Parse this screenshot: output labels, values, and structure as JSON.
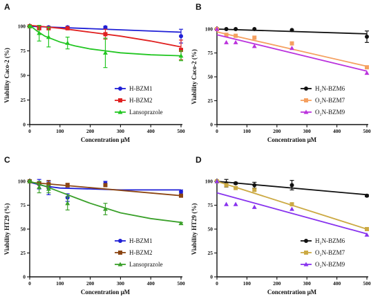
{
  "chart_data": [
    {
      "panel": "A",
      "type": "scatter",
      "xlabel": "Concentration μM",
      "ylabel": "Viability Caco-2 (%)",
      "xlim": [
        0,
        500
      ],
      "ylim": [
        0,
        100
      ],
      "xticks": [
        0,
        100,
        200,
        300,
        400,
        500
      ],
      "yticks": [
        0,
        25,
        50,
        75,
        100
      ],
      "legend_position": "bottom-right",
      "series": [
        {
          "name": "H-BZM1",
          "color": "#1f1fd6",
          "marker": "circle",
          "x": [
            0,
            31.25,
            62.5,
            125,
            250,
            500
          ],
          "y": [
            100,
            99,
            99,
            99,
            99,
            90
          ],
          "err": [
            1,
            1,
            1,
            1,
            1,
            7
          ],
          "fit": [
            [
              0,
              100
            ],
            [
              500,
              94
            ]
          ]
        },
        {
          "name": "H-BZM2",
          "color": "#e02020",
          "marker": "square",
          "x": [
            0,
            31.25,
            62.5,
            125,
            250,
            500
          ],
          "y": [
            100,
            98,
            98,
            98,
            92,
            76
          ],
          "err": [
            1,
            1,
            1,
            1,
            5,
            10
          ],
          "fit": [
            [
              0,
              101
            ],
            [
              100,
              98
            ],
            [
              200,
              94
            ],
            [
              300,
              90
            ],
            [
              400,
              85
            ],
            [
              500,
              79
            ]
          ]
        },
        {
          "name": "Lansoprazole",
          "color": "#22c622",
          "marker": "triangle",
          "x": [
            0,
            31.25,
            62.5,
            125,
            250,
            500
          ],
          "y": [
            100,
            93,
            89,
            83,
            73,
            70
          ],
          "err": [
            1,
            8,
            10,
            6,
            15,
            5
          ],
          "fit": [
            [
              0,
              101
            ],
            [
              25,
              95
            ],
            [
              50,
              90
            ],
            [
              100,
              84
            ],
            [
              150,
              80
            ],
            [
              200,
              77
            ],
            [
              250,
              75
            ],
            [
              300,
              73
            ],
            [
              400,
              71
            ],
            [
              500,
              70
            ]
          ]
        }
      ]
    },
    {
      "panel": "B",
      "type": "scatter",
      "xlabel": "Concentration μM",
      "ylabel": "Viability Caco-2 (%)",
      "xlim": [
        0,
        500
      ],
      "ylim": [
        0,
        100
      ],
      "xticks": [
        0,
        100,
        200,
        300,
        400,
        500
      ],
      "yticks": [
        0,
        25,
        50,
        75,
        100
      ],
      "legend_position": "bottom-right",
      "series": [
        {
          "name": "H₂N-BZM6",
          "color": "#111111",
          "marker": "circle",
          "x": [
            0,
            31.25,
            62.5,
            125,
            250,
            500
          ],
          "y": [
            100,
            100,
            100,
            100,
            99,
            92
          ],
          "err": [
            0,
            0,
            0,
            0,
            0,
            6
          ],
          "fit": [
            [
              0,
              100
            ],
            [
              500,
              95
            ]
          ]
        },
        {
          "name": "O₂N-BZM7",
          "color": "#f5a060",
          "marker": "square",
          "x": [
            0,
            31.25,
            62.5,
            125,
            250,
            500
          ],
          "y": [
            100,
            94,
            93,
            91,
            85,
            60
          ],
          "err": [
            0,
            0,
            0,
            0,
            0,
            0
          ],
          "fit": [
            [
              0,
              97
            ],
            [
              500,
              61
            ]
          ]
        },
        {
          "name": "O₂N-BZM9",
          "color": "#bb33dd",
          "marker": "triangle",
          "x": [
            0,
            31.25,
            62.5,
            125,
            250,
            500
          ],
          "y": [
            100,
            86,
            86,
            82,
            80,
            54
          ],
          "err": [
            0,
            0,
            0,
            0,
            0,
            0
          ],
          "fit": [
            [
              0,
              94
            ],
            [
              500,
              56
            ]
          ]
        }
      ]
    },
    {
      "panel": "C",
      "type": "scatter",
      "xlabel": "Concentration μM",
      "ylabel": "Viability HT29 (%)",
      "xlim": [
        0,
        500
      ],
      "ylim": [
        0,
        100
      ],
      "xticks": [
        0,
        100,
        200,
        300,
        400,
        500
      ],
      "yticks": [
        0,
        25,
        50,
        75,
        100
      ],
      "legend_position": "bottom-right",
      "series": [
        {
          "name": "H-BZM1",
          "color": "#1f1fd6",
          "marker": "circle",
          "x": [
            0,
            31.25,
            62.5,
            125,
            250,
            500
          ],
          "y": [
            100,
            97,
            93,
            83,
            98,
            89
          ],
          "err": [
            1,
            5,
            7,
            4,
            2,
            2
          ],
          "fit": [
            [
              0,
              99
            ],
            [
              50,
              95
            ],
            [
              100,
              93
            ],
            [
              200,
              92
            ],
            [
              300,
              91
            ],
            [
              500,
              91
            ]
          ]
        },
        {
          "name": "H-BZM2",
          "color": "#8b4513",
          "marker": "square",
          "x": [
            0,
            31.25,
            62.5,
            125,
            250,
            500
          ],
          "y": [
            100,
            98,
            97,
            96,
            96,
            85
          ],
          "err": [
            1,
            1,
            4,
            2,
            1,
            1
          ],
          "fit": [
            [
              0,
              99
            ],
            [
              500,
              85
            ]
          ]
        },
        {
          "name": "Lansoprazole",
          "color": "#3aa02a",
          "marker": "triangle",
          "x": [
            0,
            31.25,
            62.5,
            125,
            250,
            500
          ],
          "y": [
            100,
            94,
            92,
            77,
            71,
            56
          ],
          "err": [
            1,
            6,
            4,
            7,
            6,
            1
          ],
          "fit": [
            [
              0,
              100
            ],
            [
              50,
              95
            ],
            [
              100,
              89
            ],
            [
              150,
              83
            ],
            [
              200,
              77
            ],
            [
              250,
              72
            ],
            [
              300,
              67
            ],
            [
              400,
              61
            ],
            [
              500,
              57
            ]
          ]
        }
      ]
    },
    {
      "panel": "D",
      "type": "scatter",
      "xlabel": "Concentration μM",
      "ylabel": "Viability HT29 (%)",
      "xlim": [
        0,
        500
      ],
      "ylim": [
        0,
        100
      ],
      "xticks": [
        0,
        100,
        200,
        300,
        400,
        500
      ],
      "yticks": [
        0,
        25,
        50,
        75,
        100
      ],
      "legend_position": "bottom-right",
      "series": [
        {
          "name": "H₂N-BZM6",
          "color": "#111111",
          "marker": "circle",
          "x": [
            0,
            31.25,
            62.5,
            125,
            250,
            500
          ],
          "y": [
            100,
            98,
            98,
            96,
            96,
            85
          ],
          "err": [
            1,
            4,
            1,
            3,
            5,
            1
          ],
          "fit": [
            [
              0,
              100
            ],
            [
              500,
              86
            ]
          ]
        },
        {
          "name": "O₂N-BZM7",
          "color": "#ccaa44",
          "marker": "square",
          "x": [
            0,
            31.25,
            62.5,
            125,
            250,
            500
          ],
          "y": [
            100,
            96,
            93,
            91,
            76,
            50
          ],
          "err": [
            0,
            0,
            0,
            0,
            0,
            0
          ],
          "fit": [
            [
              0,
              100
            ],
            [
              500,
              50
            ]
          ]
        },
        {
          "name": "O₂N-BZM9",
          "color": "#8833ee",
          "marker": "triangle",
          "x": [
            0,
            31.25,
            62.5,
            125,
            250,
            500
          ],
          "y": [
            100,
            76,
            76,
            73,
            71,
            44
          ],
          "err": [
            0,
            0,
            0,
            0,
            0,
            0
          ],
          "fit": [
            [
              0,
              88
            ],
            [
              500,
              45
            ]
          ]
        }
      ]
    }
  ]
}
